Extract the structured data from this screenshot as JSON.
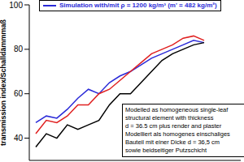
{
  "chart_data": {
    "type": "line",
    "ylabel": "transmission index/Schalldämmmaß",
    "categories": [
      null,
      null,
      null,
      null,
      null,
      null,
      null,
      null,
      null,
      null,
      null,
      null,
      null,
      null,
      null,
      null,
      null
    ],
    "series": [
      {
        "name": "Simulation with/mit ρ = 1200 kg/m³ (m' = 482 kg/m²)",
        "color": "#2a2ad8",
        "values": [
          47,
          50,
          49,
          53,
          58,
          62,
          60,
          65,
          68,
          70,
          73,
          76,
          78,
          80,
          82,
          84,
          83
        ]
      },
      {
        "color": "#e02020",
        "values": [
          42,
          48,
          47,
          50,
          55,
          55,
          60,
          62,
          66,
          70,
          74,
          78,
          80,
          82,
          85,
          86,
          84
        ]
      },
      {
        "color": "#000000",
        "values": [
          36,
          42,
          40,
          46,
          44,
          46,
          48,
          55,
          60,
          60,
          65,
          70,
          75,
          78,
          80,
          82,
          83
        ]
      }
    ],
    "ylim": [
      30,
      100
    ],
    "yticks": [
      40,
      60,
      80,
      100
    ],
    "grid": false,
    "legend": "top",
    "tick_labels": "y",
    "annotation": [
      "Modelled as homogeneous single-leaf",
      "structural element with thickness",
      "d = 36.5 cm plus render and plaster",
      "Modelliert als homogenes einschaliges",
      "Bauteil mit einer Dicke d = 36,5 cm",
      "sowie beidseitiger Putzschicht"
    ]
  }
}
